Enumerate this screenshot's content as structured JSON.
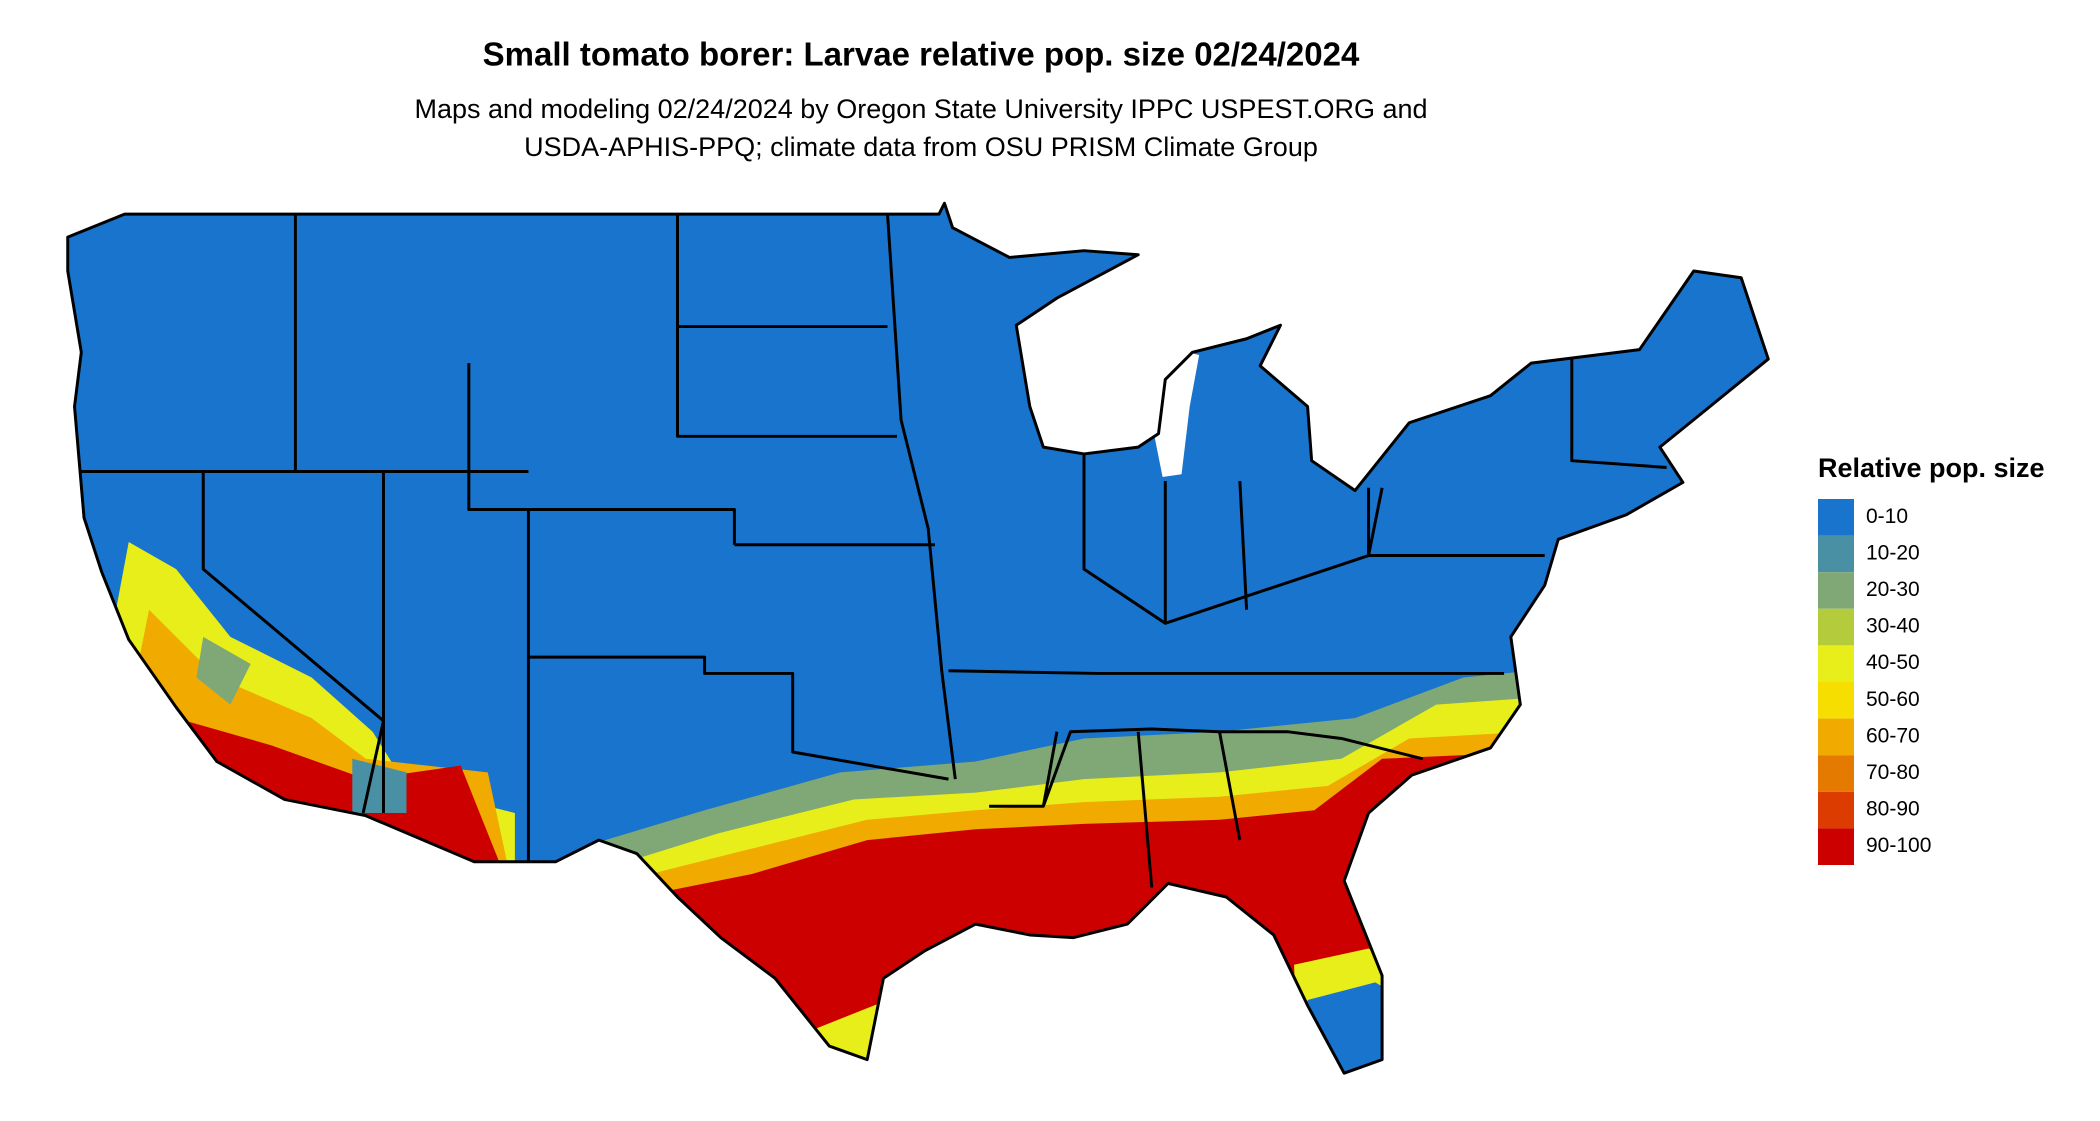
{
  "title": "Small tomato borer: Larvae relative pop. size 02/24/2024",
  "subtitle": [
    "Maps and modeling 02/24/2024 by Oregon State University IPPC USPEST.ORG and",
    "USDA-APHIS-PPQ; climate data from OSU PRISM Climate Group"
  ],
  "legend": {
    "title": "Relative pop. size",
    "items": [
      {
        "label": "0-10",
        "color": "#1874cd"
      },
      {
        "label": "10-20",
        "color": "#4a90a4"
      },
      {
        "label": "20-30",
        "color": "#7fa876"
      },
      {
        "label": "30-40",
        "color": "#b4cc3c"
      },
      {
        "label": "40-50",
        "color": "#e8ee1a"
      },
      {
        "label": "50-60",
        "color": "#f5de00"
      },
      {
        "label": "60-70",
        "color": "#f0aa00"
      },
      {
        "label": "70-80",
        "color": "#e57a00"
      },
      {
        "label": "80-90",
        "color": "#dd3c00"
      },
      {
        "label": "90-100",
        "color": "#cd0000"
      }
    ]
  }
}
